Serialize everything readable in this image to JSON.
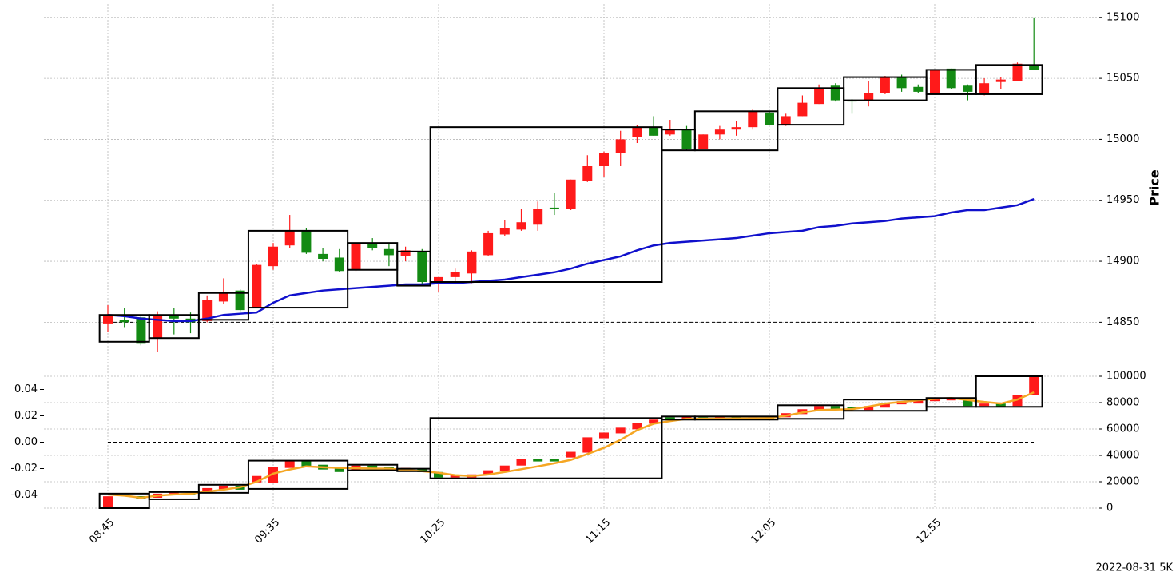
{
  "chart_data": {
    "type": "candlestick",
    "ylabel": "Price",
    "footnote": "2022-08-31 5K",
    "categories": [
      "08:45",
      null,
      null,
      null,
      null,
      null,
      null,
      null,
      null,
      null,
      "09:35",
      null,
      null,
      null,
      null,
      null,
      null,
      null,
      null,
      null,
      "10:25",
      null,
      null,
      null,
      null,
      null,
      null,
      null,
      null,
      null,
      "11:15",
      null,
      null,
      null,
      null,
      null,
      null,
      null,
      null,
      null,
      "12:05",
      null,
      null,
      null,
      null,
      null,
      null,
      null,
      null,
      null,
      "12:55",
      null,
      null,
      null,
      null,
      null,
      null
    ],
    "ylim": [
      14826,
      15111
    ],
    "yticks": [
      14850,
      14900,
      14950,
      15000,
      15050,
      15100
    ],
    "up_color": "#ff1a1a",
    "down_color": "#138a13",
    "open": [
      14849,
      14852,
      14854,
      14837,
      14855,
      14853,
      14851,
      14867,
      14876,
      14862,
      14896,
      14913,
      14925,
      14906,
      14903,
      14893,
      14915,
      14910,
      14904,
      14908,
      14883,
      14887,
      14890,
      14905,
      14922,
      14926,
      14930,
      14944,
      14943,
      14966,
      14978,
      14989,
      15002,
      15010,
      15004,
      15008,
      14992,
      15004,
      15008,
      15010,
      15022,
      15012,
      15019,
      15029,
      15044,
      15032,
      15032,
      15038,
      15051,
      15043,
      15038,
      15058,
      15044,
      15037,
      15047,
      15048,
      15061
    ],
    "high": [
      14864,
      14862,
      14855,
      14859,
      14862,
      14858,
      14872,
      14886,
      14877,
      14898,
      14915,
      14938,
      14927,
      14911,
      14910,
      14915,
      14919,
      14915,
      14912,
      14910,
      14887,
      14894,
      14909,
      14925,
      14934,
      14943,
      14949,
      14956,
      14967,
      14987,
      14990,
      15007,
      15012,
      15019,
      15016,
      15011,
      15004,
      15011,
      15015,
      15025,
      15023,
      15021,
      15036,
      15045,
      15046,
      15033,
      15048,
      15052,
      15053,
      15045,
      15057,
      15058,
      15045,
      15050,
      15051,
      15063,
      15100
    ],
    "low": [
      14842,
      14846,
      14831,
      14826,
      14840,
      14841,
      14850,
      14865,
      14859,
      14862,
      14893,
      14911,
      14906,
      14900,
      14891,
      14892,
      14909,
      14896,
      14900,
      14881,
      14875,
      14881,
      14882,
      14904,
      14921,
      14925,
      14925,
      14938,
      14942,
      14965,
      14969,
      14978,
      14997,
      15003,
      15003,
      14991,
      14992,
      15000,
      15003,
      15008,
      15012,
      15011,
      15019,
      15029,
      15031,
      15021,
      15027,
      15037,
      15039,
      15038,
      15037,
      15041,
      15032,
      15036,
      15041,
      15048,
      15057
    ],
    "close": [
      14855,
      14850,
      14833,
      14856,
      14853,
      14850,
      14868,
      14875,
      14860,
      14897,
      14912,
      14925,
      14907,
      14902,
      14892,
      14914,
      14911,
      14905,
      14909,
      14883,
      14887,
      14891,
      14908,
      14923,
      14927,
      14932,
      14943,
      14943,
      14967,
      14978,
      14989,
      15000,
      15010,
      15003,
      15008,
      14992,
      15004,
      15008,
      15010,
      15023,
      15012,
      15019,
      15030,
      15042,
      15032,
      15031,
      15038,
      15051,
      15042,
      15039,
      15057,
      15042,
      15039,
      15046,
      15049,
      15062,
      15057
    ],
    "ma": {
      "color": "#1010cc",
      "values": [
        14856,
        14855,
        14853,
        14852,
        14851,
        14851,
        14853,
        14856,
        14857,
        14858,
        14866,
        14872,
        14874,
        14876,
        14877,
        14878,
        14879,
        14880,
        14881,
        14881,
        14882,
        14882,
        14883,
        14884,
        14885,
        14887,
        14889,
        14891,
        14894,
        14898,
        14901,
        14904,
        14909,
        14913,
        14915,
        14916,
        14917,
        14918,
        14919,
        14921,
        14923,
        14924,
        14925,
        14928,
        14929,
        14931,
        14932,
        14933,
        14935,
        14936,
        14937,
        14940,
        14942,
        14942,
        14944,
        14946,
        14951
      ]
    },
    "reference_line": 14850,
    "boxes": [
      {
        "start": 0,
        "end": 2,
        "low": 14834,
        "high": 14856
      },
      {
        "start": 3,
        "end": 5,
        "low": 14837,
        "high": 14856
      },
      {
        "start": 6,
        "end": 8,
        "low": 14852,
        "high": 14874
      },
      {
        "start": 9,
        "end": 14,
        "low": 14862,
        "high": 14925
      },
      {
        "start": 15,
        "end": 17,
        "low": 14893,
        "high": 14915
      },
      {
        "start": 18,
        "end": 19,
        "low": 14880,
        "high": 14908
      },
      {
        "start": 20,
        "end": 33,
        "low": 14883,
        "high": 15010
      },
      {
        "start": 34,
        "end": 35,
        "low": 14991,
        "high": 15008
      },
      {
        "start": 36,
        "end": 40,
        "low": 14991,
        "high": 15023
      },
      {
        "start": 41,
        "end": 44,
        "low": 15012,
        "high": 15042
      },
      {
        "start": 45,
        "end": 49,
        "low": 15032,
        "high": 15051
      },
      {
        "start": 50,
        "end": 52,
        "low": 15037,
        "high": 15057
      },
      {
        "start": 53,
        "end": 56,
        "low": 15037,
        "high": 15061
      }
    ],
    "lower": {
      "ylim": [
        -0.05,
        0.05
      ],
      "yticks": [
        -0.04,
        -0.02,
        {
          "value": 0,
          "label": "0.00"
        },
        0.02,
        0.04
      ],
      "y2lim": [
        0,
        100000
      ],
      "y2ticks": [
        0,
        20000,
        40000,
        60000,
        80000,
        100000
      ],
      "reference_line": 0,
      "open": [
        0,
        10400,
        9100,
        7900,
        11000,
        11600,
        11600,
        14000,
        17000,
        19500,
        18900,
        30500,
        36000,
        32900,
        31100,
        28700,
        32300,
        31100,
        28000,
        29900,
        27400,
        23200,
        23200,
        25600,
        28000,
        32300,
        37200,
        37200,
        38400,
        42100,
        53000,
        56700,
        59800,
        64000,
        68900,
        67700,
        68900,
        67700,
        69500,
        68300,
        68900,
        68900,
        71300,
        73800,
        77400,
        76800,
        74400,
        76200,
        78700,
        79300,
        81100,
        81700,
        81700,
        77400,
        79300,
        77400,
        86000
      ],
      "close": [
        9000,
        9100,
        6700,
        11000,
        12200,
        10400,
        15200,
        17000,
        14000,
        24400,
        31100,
        36000,
        31700,
        29300,
        27400,
        32300,
        29300,
        28700,
        30500,
        27400,
        23200,
        25000,
        25600,
        28700,
        32300,
        37200,
        35400,
        35400,
        42700,
        53700,
        57300,
        61000,
        64600,
        67100,
        67100,
        69500,
        67700,
        69500,
        67700,
        68900,
        68300,
        72000,
        75000,
        77400,
        75000,
        75600,
        77400,
        79300,
        81100,
        82300,
        82900,
        83500,
        77400,
        79300,
        76800,
        86000,
        100000
      ],
      "line": {
        "color": "#f5a623",
        "values": [
          10400,
          9500,
          7900,
          9500,
          10400,
          11000,
          12500,
          14000,
          15900,
          20000,
          26200,
          29300,
          31700,
          31000,
          30500,
          30300,
          30000,
          29900,
          29000,
          28000,
          26800,
          25000,
          24400,
          25500,
          27400,
          29500,
          31700,
          34000,
          36600,
          41000,
          45700,
          51800,
          59100,
          64000,
          66000,
          67700,
          67800,
          67900,
          68000,
          68100,
          68300,
          70100,
          72500,
          74400,
          74700,
          75000,
          77000,
          79300,
          80500,
          81800,
          82900,
          83500,
          82000,
          80500,
          79300,
          82300,
          87800
        ]
      },
      "boxes": [
        {
          "start": 0,
          "end": 2,
          "low": 0,
          "high": 11000
        },
        {
          "start": 3,
          "end": 5,
          "low": 6700,
          "high": 12200
        },
        {
          "start": 6,
          "end": 8,
          "low": 11600,
          "high": 17700
        },
        {
          "start": 9,
          "end": 14,
          "low": 14600,
          "high": 36000
        },
        {
          "start": 15,
          "end": 17,
          "low": 28700,
          "high": 32900
        },
        {
          "start": 18,
          "end": 19,
          "low": 28000,
          "high": 29900
        },
        {
          "start": 20,
          "end": 33,
          "low": 22600,
          "high": 68300
        },
        {
          "start": 34,
          "end": 35,
          "low": 67100,
          "high": 69500
        },
        {
          "start": 36,
          "end": 40,
          "low": 67100,
          "high": 69500
        },
        {
          "start": 41,
          "end": 44,
          "low": 67700,
          "high": 78000
        },
        {
          "start": 45,
          "end": 49,
          "low": 73800,
          "high": 82300
        },
        {
          "start": 50,
          "end": 52,
          "low": 76800,
          "high": 83500
        },
        {
          "start": 53,
          "end": 56,
          "low": 76800,
          "high": 100000
        }
      ]
    }
  }
}
